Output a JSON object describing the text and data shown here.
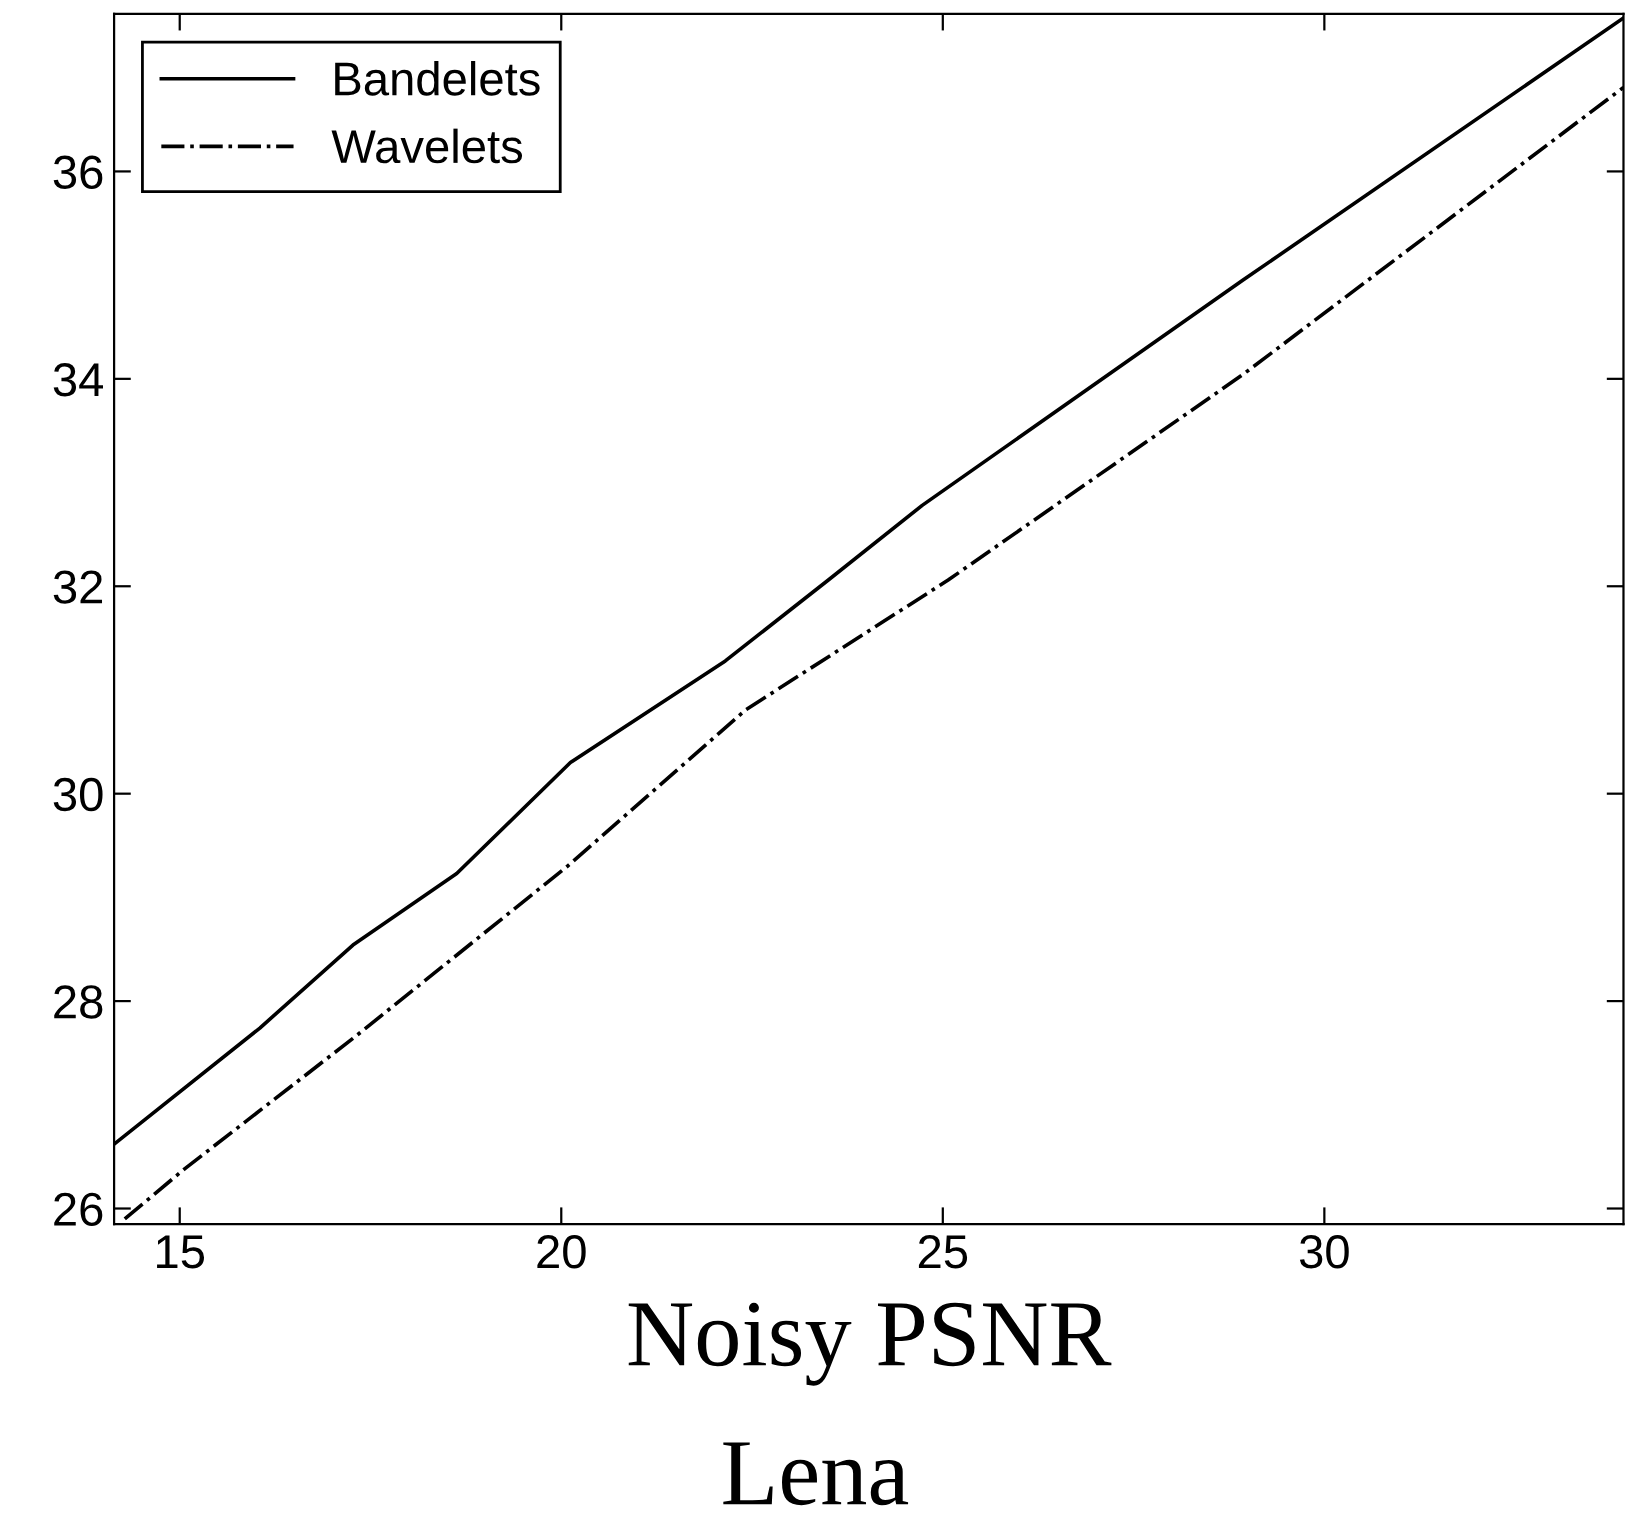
{
  "chart_data": {
    "type": "line",
    "xlabel": "Noisy PSNR",
    "annotations": [
      "Lena"
    ],
    "series": [
      {
        "name": "Bandelets",
        "color": "#000000",
        "line_style": "solid",
        "x": [
          14.14,
          16.05,
          17.27,
          18.63,
          20.12,
          22.15,
          23.5,
          24.73,
          28.93,
          33.92
        ],
        "values": [
          26.62,
          27.74,
          28.54,
          29.23,
          30.3,
          31.28,
          32.06,
          32.78,
          34.95,
          37.48
        ]
      },
      {
        "name": "Wavelets",
        "color": "#000000",
        "line_style": "dashdot",
        "x": [
          14.28,
          15.06,
          17.27,
          20.08,
          22.42,
          25.07,
          28.93,
          33.92
        ],
        "values": [
          25.9,
          26.38,
          27.64,
          29.3,
          30.81,
          32.06,
          34.04,
          36.81
        ]
      }
    ],
    "xlim": [
      14.14,
      33.92
    ],
    "ylim": [
      25.85,
      37.52
    ],
    "xticks": [
      15,
      20,
      25,
      30
    ],
    "yticks": [
      26,
      28,
      30,
      32,
      34,
      36
    ],
    "grid": false,
    "legend": "top left",
    "marker": "none"
  }
}
